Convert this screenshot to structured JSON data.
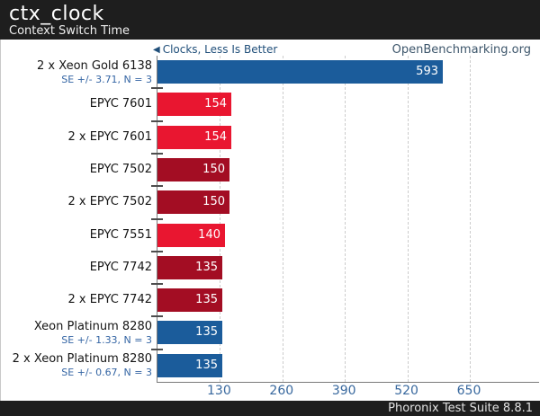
{
  "header": {
    "title": "ctx_clock",
    "subtitle": "Context Switch Time"
  },
  "meta": {
    "arrow_icon": "◀",
    "better_note": "Clocks, Less Is Better",
    "site_link": "OpenBenchmarking.org"
  },
  "footer": {
    "text": "Phoronix Test Suite 8.8.1"
  },
  "colors": {
    "blue": "#1b5c9b",
    "red": "#e91630",
    "dark_red": "#a30d23",
    "grid": "#cccccc",
    "axis": "#7a7a7a",
    "tick_text": "#38689e",
    "se_text": "#3465a4",
    "note_text": "#1f4e79",
    "site_text": "#3d566b",
    "header_bg": "#1e1e1e"
  },
  "chart_data": {
    "type": "bar",
    "orientation": "horizontal",
    "title": "ctx_clock",
    "subtitle": "Context Switch Time",
    "xlabel": "Clocks",
    "value_direction": "lower-is-better",
    "xticks": [
      130,
      260,
      390,
      520,
      650
    ],
    "xlim": [
      0,
      794
    ],
    "grid": "dashed-vertical",
    "rows": [
      {
        "label": "2 x Xeon Gold 6138",
        "se_note": "SE +/- 3.71, N = 3",
        "value": 593,
        "color_key": "blue"
      },
      {
        "label": "EPYC 7601",
        "se_note": "",
        "value": 154,
        "color_key": "red"
      },
      {
        "label": "2 x EPYC 7601",
        "se_note": "",
        "value": 154,
        "color_key": "red"
      },
      {
        "label": "EPYC 7502",
        "se_note": "",
        "value": 150,
        "color_key": "dark_red"
      },
      {
        "label": "2 x EPYC 7502",
        "se_note": "",
        "value": 150,
        "color_key": "dark_red"
      },
      {
        "label": "EPYC 7551",
        "se_note": "",
        "value": 140,
        "color_key": "red"
      },
      {
        "label": "EPYC 7742",
        "se_note": "",
        "value": 135,
        "color_key": "dark_red"
      },
      {
        "label": "2 x EPYC 7742",
        "se_note": "",
        "value": 135,
        "color_key": "dark_red"
      },
      {
        "label": "Xeon Platinum 8280",
        "se_note": "SE +/- 1.33, N = 3",
        "value": 135,
        "color_key": "blue"
      },
      {
        "label": "2 x Xeon Platinum 8280",
        "se_note": "SE +/- 0.67, N = 3",
        "value": 135,
        "color_key": "blue"
      }
    ]
  }
}
